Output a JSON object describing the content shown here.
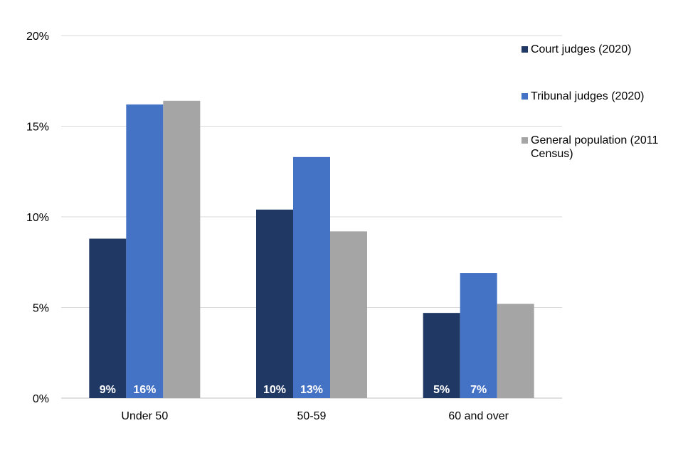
{
  "chart_data": {
    "type": "bar",
    "categories": [
      "Under 50",
      "50-59",
      "60 and over"
    ],
    "series": [
      {
        "name": "Court judges (2020)",
        "color": "#203864",
        "values": [
          8.8,
          10.4,
          4.7
        ],
        "labels": [
          "9%",
          "10%",
          "5%"
        ]
      },
      {
        "name": "Tribunal judges (2020)",
        "color": "#4472c4",
        "values": [
          16.2,
          13.3,
          6.9
        ],
        "labels": [
          "16%",
          "13%",
          "7%"
        ]
      },
      {
        "name": "General population (2011 Census)",
        "color": "#a5a5a5",
        "values": [
          16.4,
          9.2,
          5.2
        ],
        "labels": [
          "",
          "",
          ""
        ]
      }
    ],
    "y_ticks": [
      "0%",
      "5%",
      "10%",
      "15%",
      "20%"
    ],
    "y_tick_values": [
      0,
      5,
      10,
      15,
      20
    ],
    "ylim": [
      0,
      20
    ],
    "grid": true,
    "legend_position": "right",
    "title": "",
    "xlabel": "",
    "ylabel": ""
  }
}
